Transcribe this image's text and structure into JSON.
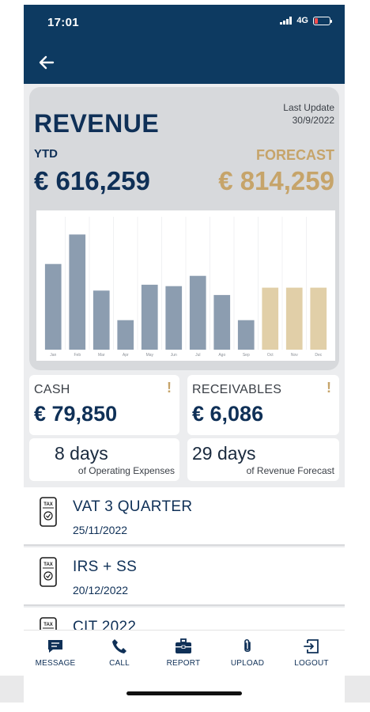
{
  "status_bar": {
    "time": "17:01",
    "network": "4G"
  },
  "revenue": {
    "title": "REVENUE",
    "last_update_label": "Last Update",
    "last_update_date": "30/9/2022",
    "ytd_label": "YTD",
    "ytd_value": "€ 616,259",
    "forecast_label": "FORECAST",
    "forecast_value": "€ 814,259"
  },
  "chart_data": {
    "type": "bar",
    "categories": [
      "Jan",
      "Feb",
      "Mar",
      "Apr",
      "May",
      "Jun",
      "Jul",
      "Ago",
      "Sep",
      "Oct",
      "Nov",
      "Dec"
    ],
    "values": [
      58,
      78,
      40,
      20,
      44,
      43,
      50,
      37,
      20,
      42,
      42,
      42
    ],
    "kind": [
      "actual",
      "actual",
      "actual",
      "actual",
      "actual",
      "actual",
      "actual",
      "actual",
      "actual",
      "forecast",
      "forecast",
      "forecast"
    ],
    "ylim": [
      0,
      90
    ],
    "colors": {
      "actual": "#8c9db0",
      "forecast": "#e1cfa8"
    }
  },
  "cash": {
    "label": "CASH",
    "alert": "!",
    "value": "€  79,850",
    "days": "8 days",
    "days_sub": "of Operating Expenses"
  },
  "receivables": {
    "label": "RECEIVABLES",
    "alert": "!",
    "value": "€  6,086",
    "days": "29 days",
    "days_sub": "of Revenue Forecast"
  },
  "tax_items": [
    {
      "icon_text": "TAX",
      "title": "VAT 3 QUARTER",
      "date": "25/11/2022"
    },
    {
      "icon_text": "TAX",
      "title": "IRS + SS",
      "date": "20/12/2022"
    },
    {
      "icon_text": "TAX",
      "title": "CIT 2022",
      "date": ""
    }
  ],
  "nav": [
    {
      "label": "MESSAGE",
      "icon": "message-icon"
    },
    {
      "label": "CALL",
      "icon": "phone-icon"
    },
    {
      "label": "REPORT",
      "icon": "briefcase-icon"
    },
    {
      "label": "UPLOAD",
      "icon": "paperclip-icon"
    },
    {
      "label": "LOGOUT",
      "icon": "logout-icon"
    }
  ]
}
